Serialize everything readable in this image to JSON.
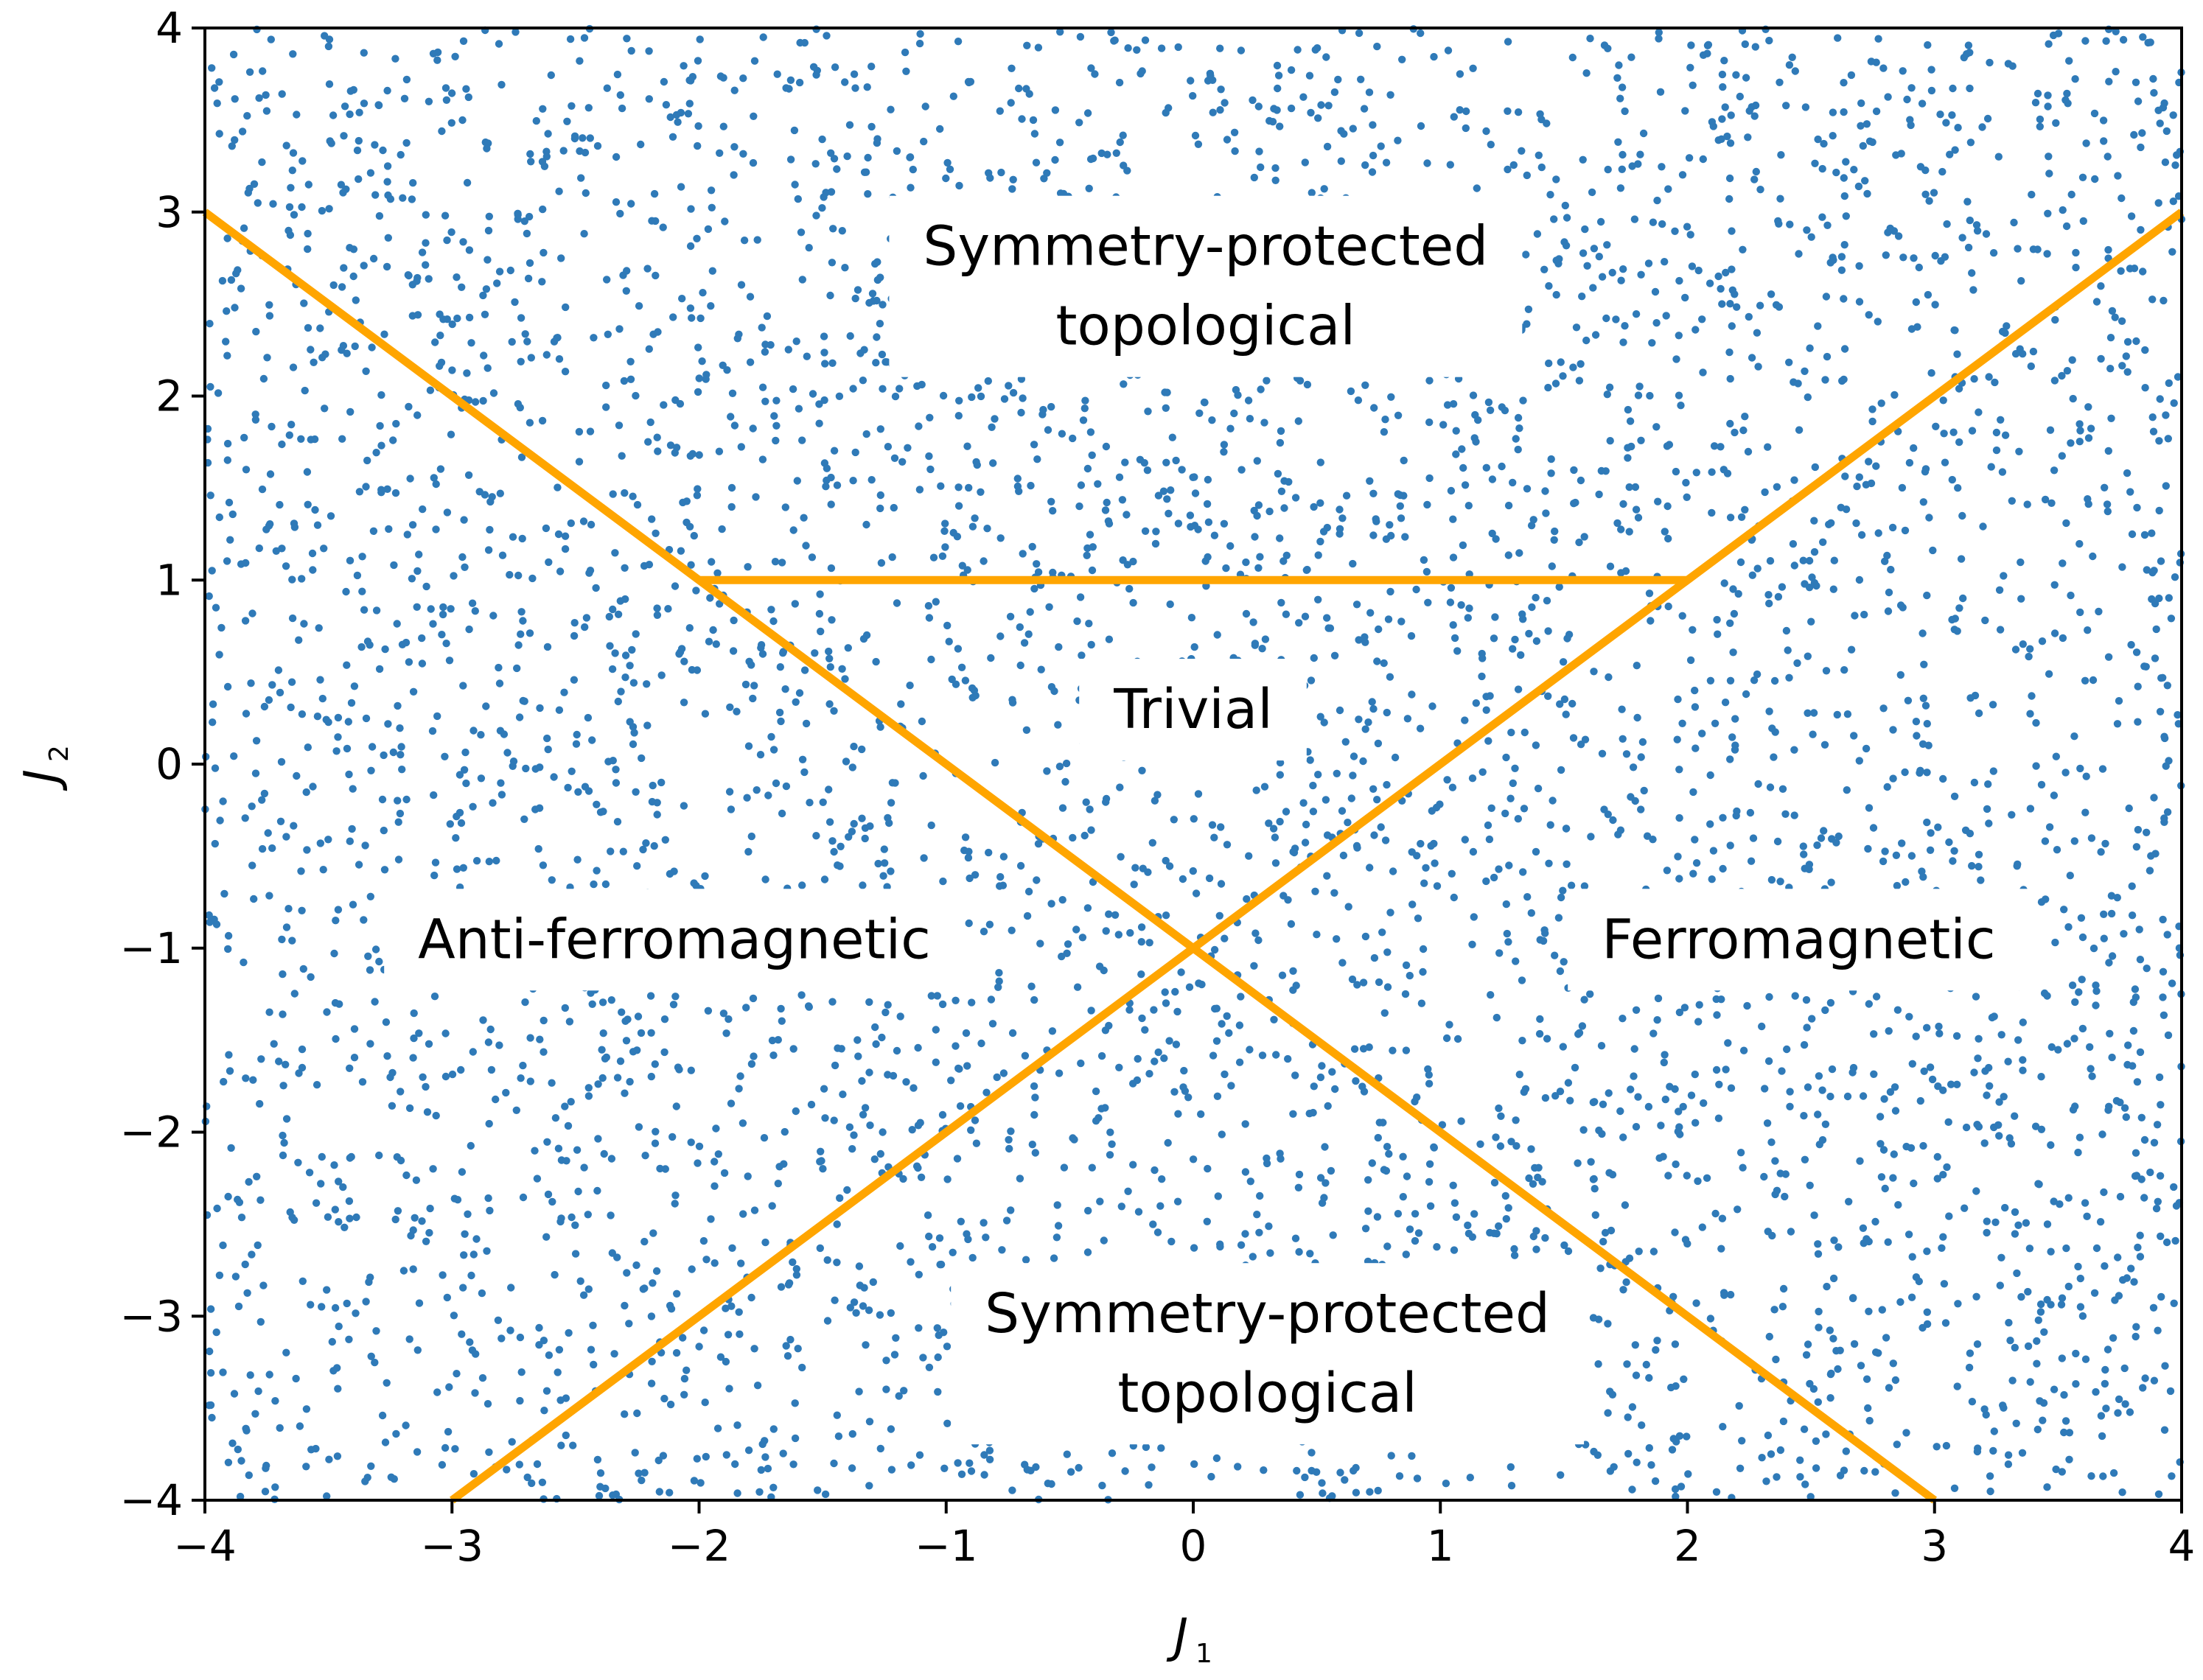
{
  "chart_data": {
    "type": "scatter",
    "title": "",
    "xlabel": "J",
    "xlabel_subscript": "1",
    "ylabel": "J",
    "ylabel_subscript": "2",
    "xlim": [
      -4,
      4
    ],
    "ylim": [
      -4,
      4
    ],
    "xticks": [
      -4,
      -3,
      -2,
      -1,
      0,
      1,
      2,
      3,
      4
    ],
    "yticks": [
      -4,
      -3,
      -2,
      -1,
      0,
      1,
      2,
      3,
      4
    ],
    "xtick_labels": [
      "−4",
      "−3",
      "−2",
      "−1",
      "0",
      "1",
      "2",
      "3",
      "4"
    ],
    "ytick_labels": [
      "−4",
      "−3",
      "−2",
      "−1",
      "0",
      "1",
      "2",
      "3",
      "4"
    ],
    "grid": false,
    "legend": "none",
    "scatter": {
      "distribution": "uniform",
      "x_range": [
        -4,
        4
      ],
      "y_range": [
        -4,
        4
      ],
      "count": 5000,
      "color": "#2f7ab8"
    },
    "phase_boundaries": {
      "color": "#ffa500",
      "lines": [
        {
          "points": [
            [
              -4,
              3
            ],
            [
              -2,
              1
            ],
            [
              0,
              -1
            ],
            [
              3,
              -4
            ]
          ]
        },
        {
          "points": [
            [
              4,
              3
            ],
            [
              2,
              1
            ],
            [
              0,
              -1
            ],
            [
              -3,
              -4
            ]
          ]
        },
        {
          "points": [
            [
              -2,
              1
            ],
            [
              2,
              1
            ]
          ]
        }
      ]
    },
    "annotations": [
      {
        "lines": [
          "Symmetry-protected",
          "topological"
        ],
        "x": 0.05,
        "y": 2.6
      },
      {
        "lines": [
          "Trivial"
        ],
        "x": 0.0,
        "y": 0.3
      },
      {
        "lines": [
          "Anti-ferromagnetic"
        ],
        "x": -2.1,
        "y": -0.95
      },
      {
        "lines": [
          "Ferromagnetic"
        ],
        "x": 2.45,
        "y": -0.95
      },
      {
        "lines": [
          "Symmetry-protected",
          "topological"
        ],
        "x": 0.3,
        "y": -3.2
      }
    ]
  }
}
